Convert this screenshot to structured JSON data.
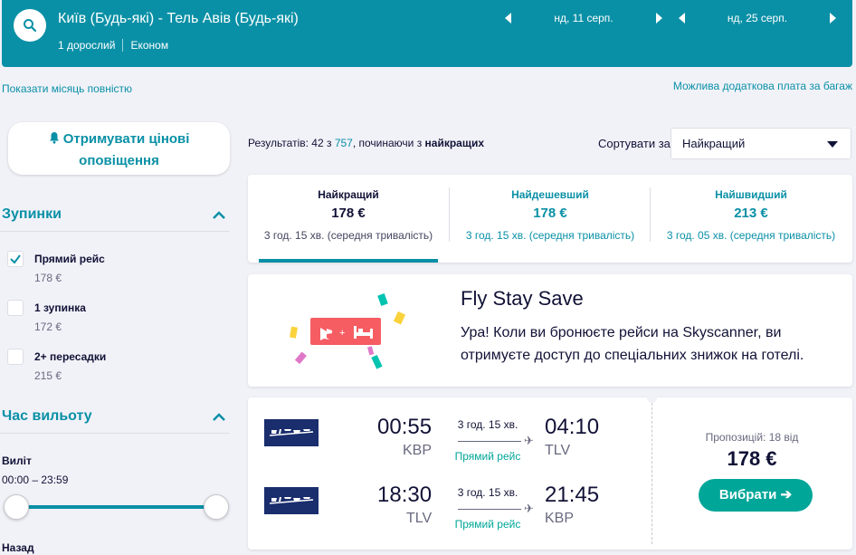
{
  "header": {
    "route": "Київ (Будь-які) - Тель Авів (Будь-які)",
    "passengers": "1 дорослий",
    "cabin": "Економ",
    "depart_date": "нд, 11 серп.",
    "return_date": "нд, 25 серп."
  },
  "links": {
    "show_month": "Показати місяць повністю",
    "baggage": "Можлива додаткова плата за багаж"
  },
  "sidebar": {
    "alert_line1": "Отримувати цінові",
    "alert_line2": "оповіщення",
    "stops_title": "Зупинки",
    "stops": [
      {
        "label": "Прямий рейс",
        "price": "178 €",
        "checked": true
      },
      {
        "label": "1 зупинка",
        "price": "172 €",
        "checked": false
      },
      {
        "label": "2+ пересадки",
        "price": "215 €",
        "checked": false
      }
    ],
    "time_title": "Час вильоту",
    "departure_label": "Виліт",
    "departure_range": "00:00 – 23:59",
    "return_label": "Назад"
  },
  "results": {
    "prefix": "Результатів: 42 з ",
    "total": "757",
    "middle": ", починаючи з ",
    "best": "найкращих",
    "sort_label": "Сортувати за",
    "sort_value": "Найкращий"
  },
  "tabs": [
    {
      "name": "Найкращий",
      "price": "178 €",
      "duration": "3 год. 15 хв. (середня тривалість)"
    },
    {
      "name": "Найдешевший",
      "price": "178 €",
      "duration": "3 год. 15 хв. (середня тривалість)"
    },
    {
      "name": "Найшвидший",
      "price": "213 €",
      "duration": "3 год. 05 хв. (середня тривалість)"
    }
  ],
  "promo": {
    "title": "Fly Stay Save",
    "body": "Ура! Коли ви бронюєте рейси на Skyscanner, ви отримуєте доступ до спеціальних знижок на готелі."
  },
  "flight": {
    "outbound": {
      "dep_time": "00:55",
      "dep_code": "KBP",
      "duration": "3 год. 15 хв.",
      "stops": "Прямий рейс",
      "arr_time": "04:10",
      "arr_code": "TLV"
    },
    "inbound": {
      "dep_time": "18:30",
      "dep_code": "TLV",
      "duration": "3 год. 15 хв.",
      "stops": "Прямий рейс",
      "arr_time": "21:45",
      "arr_code": "KBP"
    },
    "offers": "Пропозицій: 18 від",
    "price": "178 €",
    "select": "Вибрати"
  },
  "colors": {
    "accent": "#0a90a6",
    "green": "#00a698",
    "promo_red": "#f55d63"
  }
}
